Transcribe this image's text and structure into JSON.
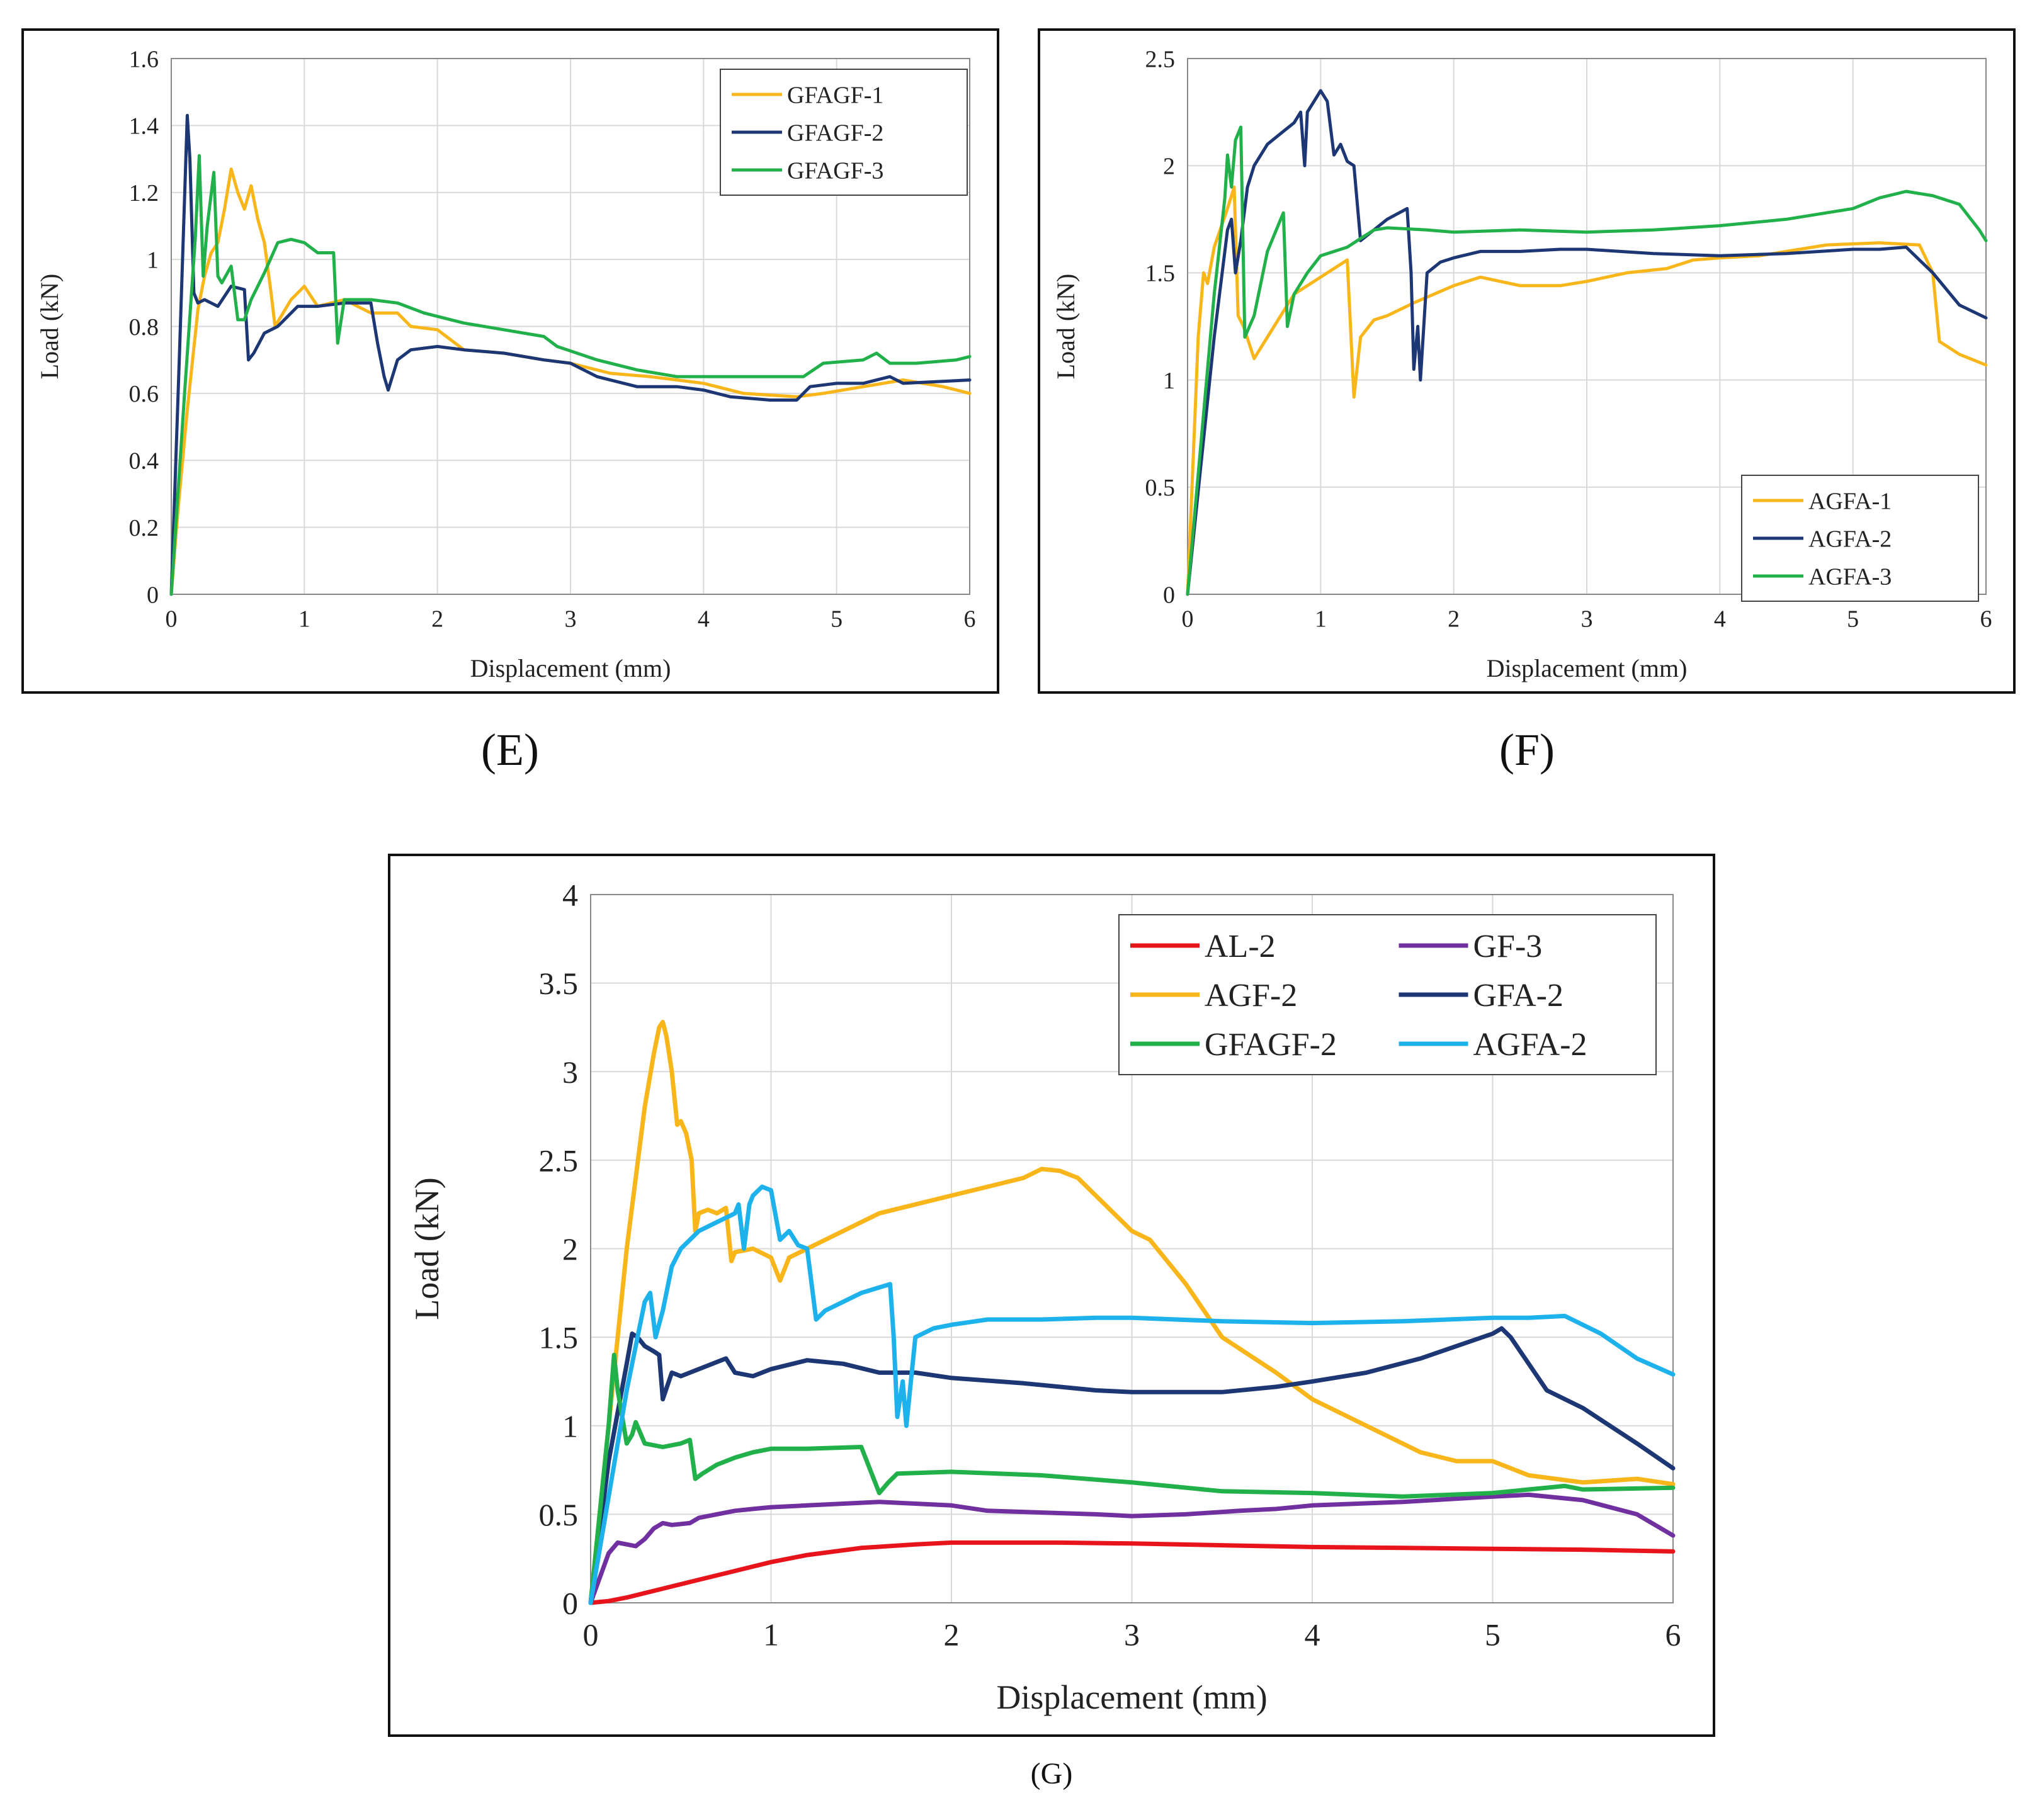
{
  "panel_captions": [
    "(E)",
    "(F)",
    "(G)"
  ],
  "chart_data": [
    {
      "id": "E",
      "type": "line",
      "xlabel": "Displacement (mm)",
      "ylabel": "Load (kN)",
      "xlim": [
        0,
        6
      ],
      "ylim": [
        0,
        1.6
      ],
      "xticks": [
        "0",
        "1",
        "2",
        "3",
        "4",
        "5",
        "6"
      ],
      "yticks": [
        "0",
        "0.2",
        "0.4",
        "0.6",
        "0.8",
        "1",
        "1.2",
        "1.4",
        "1.6"
      ],
      "grid": true,
      "legend_position": "top-right",
      "series": [
        {
          "name": "GFAGF-1",
          "color": "#f8b61b",
          "x": [
            0,
            0.05,
            0.12,
            0.2,
            0.25,
            0.3,
            0.35,
            0.4,
            0.45,
            0.5,
            0.55,
            0.6,
            0.65,
            0.7,
            0.75,
            0.78,
            0.9,
            1.0,
            1.1,
            1.2,
            1.3,
            1.5,
            1.7,
            1.8,
            2.0,
            2.2,
            2.5,
            2.8,
            3.0,
            3.3,
            3.6,
            4.0,
            4.3,
            4.7,
            4.9,
            5.2,
            5.5,
            5.8,
            6.0
          ],
          "y": [
            0,
            0.25,
            0.55,
            0.85,
            0.95,
            1.02,
            1.05,
            1.15,
            1.27,
            1.2,
            1.15,
            1.22,
            1.12,
            1.05,
            0.9,
            0.8,
            0.88,
            0.92,
            0.86,
            0.87,
            0.88,
            0.84,
            0.84,
            0.8,
            0.79,
            0.73,
            0.72,
            0.7,
            0.69,
            0.66,
            0.65,
            0.63,
            0.6,
            0.59,
            0.6,
            0.62,
            0.64,
            0.62,
            0.6
          ]
        },
        {
          "name": "GFAGF-2",
          "color": "#1d3774",
          "x": [
            0,
            0.06,
            0.12,
            0.14,
            0.17,
            0.2,
            0.25,
            0.3,
            0.35,
            0.45,
            0.55,
            0.58,
            0.62,
            0.7,
            0.8,
            0.95,
            1.1,
            1.3,
            1.5,
            1.55,
            1.6,
            1.63,
            1.7,
            1.8,
            2.0,
            2.2,
            2.5,
            2.8,
            3.0,
            3.2,
            3.5,
            3.8,
            4.0,
            4.2,
            4.5,
            4.7,
            4.8,
            5.0,
            5.2,
            5.4,
            5.5,
            6.0
          ],
          "y": [
            0,
            0.7,
            1.43,
            1.3,
            0.9,
            0.87,
            0.88,
            0.87,
            0.86,
            0.92,
            0.91,
            0.7,
            0.72,
            0.78,
            0.8,
            0.86,
            0.86,
            0.87,
            0.87,
            0.75,
            0.65,
            0.61,
            0.7,
            0.73,
            0.74,
            0.73,
            0.72,
            0.7,
            0.69,
            0.65,
            0.62,
            0.62,
            0.61,
            0.59,
            0.58,
            0.58,
            0.62,
            0.63,
            0.63,
            0.65,
            0.63,
            0.64
          ]
        },
        {
          "name": "GFAGF-3",
          "color": "#22b04a",
          "x": [
            0,
            0.1,
            0.18,
            0.21,
            0.24,
            0.27,
            0.32,
            0.35,
            0.38,
            0.45,
            0.5,
            0.55,
            0.6,
            0.7,
            0.8,
            0.9,
            1.0,
            1.1,
            1.22,
            1.25,
            1.3,
            1.5,
            1.7,
            1.9,
            2.2,
            2.5,
            2.8,
            2.9,
            3.2,
            3.5,
            3.8,
            4.2,
            4.6,
            4.75,
            4.9,
            5.2,
            5.3,
            5.4,
            5.6,
            5.9,
            6.0
          ],
          "y": [
            0,
            0.6,
            1.06,
            1.31,
            0.95,
            1.1,
            1.26,
            0.95,
            0.93,
            0.98,
            0.82,
            0.82,
            0.88,
            0.96,
            1.05,
            1.06,
            1.05,
            1.02,
            1.02,
            0.75,
            0.88,
            0.88,
            0.87,
            0.84,
            0.81,
            0.79,
            0.77,
            0.74,
            0.7,
            0.67,
            0.65,
            0.65,
            0.65,
            0.65,
            0.69,
            0.7,
            0.72,
            0.69,
            0.69,
            0.7,
            0.71
          ]
        }
      ]
    },
    {
      "id": "F",
      "type": "line",
      "xlabel": "Displacement (mm)",
      "ylabel": "Load (kN)",
      "xlim": [
        0,
        6
      ],
      "ylim": [
        0,
        2.5
      ],
      "xticks": [
        "0",
        "1",
        "2",
        "3",
        "4",
        "5",
        "6"
      ],
      "yticks": [
        "0",
        "0.5",
        "1",
        "1.5",
        "2",
        "2.5"
      ],
      "grid": true,
      "legend_position": "bottom-right",
      "series": [
        {
          "name": "AGFA-1",
          "color": "#f8b61b",
          "x": [
            0,
            0.08,
            0.12,
            0.15,
            0.2,
            0.3,
            0.35,
            0.38,
            0.42,
            0.5,
            0.6,
            0.7,
            0.8,
            1.0,
            1.2,
            1.25,
            1.3,
            1.4,
            1.5,
            1.7,
            2.0,
            2.2,
            2.5,
            2.8,
            3.0,
            3.3,
            3.6,
            3.8,
            4.0,
            4.3,
            4.5,
            4.8,
            5.2,
            5.5,
            5.6,
            5.65,
            5.8,
            6.0
          ],
          "y": [
            0,
            1.2,
            1.5,
            1.45,
            1.62,
            1.8,
            1.9,
            1.3,
            1.25,
            1.1,
            1.2,
            1.3,
            1.4,
            1.48,
            1.56,
            0.92,
            1.2,
            1.28,
            1.3,
            1.36,
            1.44,
            1.48,
            1.44,
            1.44,
            1.46,
            1.5,
            1.52,
            1.56,
            1.57,
            1.58,
            1.6,
            1.63,
            1.64,
            1.63,
            1.5,
            1.18,
            1.12,
            1.07
          ]
        },
        {
          "name": "AGFA-2",
          "color": "#1d3774",
          "x": [
            0,
            0.1,
            0.2,
            0.3,
            0.33,
            0.36,
            0.4,
            0.45,
            0.5,
            0.6,
            0.7,
            0.8,
            0.85,
            0.88,
            0.9,
            0.95,
            1.0,
            1.05,
            1.1,
            1.15,
            1.2,
            1.25,
            1.3,
            1.5,
            1.65,
            1.68,
            1.7,
            1.73,
            1.75,
            1.8,
            1.9,
            2.0,
            2.2,
            2.5,
            2.8,
            3.0,
            3.5,
            4.0,
            4.5,
            5.0,
            5.2,
            5.4,
            5.6,
            5.8,
            6.0
          ],
          "y": [
            0,
            0.6,
            1.2,
            1.7,
            1.75,
            1.5,
            1.65,
            1.9,
            2.0,
            2.1,
            2.15,
            2.2,
            2.25,
            2.0,
            2.25,
            2.3,
            2.35,
            2.3,
            2.05,
            2.1,
            2.02,
            2.0,
            1.65,
            1.75,
            1.8,
            1.5,
            1.05,
            1.25,
            1.0,
            1.5,
            1.55,
            1.57,
            1.6,
            1.6,
            1.61,
            1.61,
            1.59,
            1.58,
            1.59,
            1.61,
            1.61,
            1.62,
            1.5,
            1.35,
            1.29
          ]
        },
        {
          "name": "AGFA-3",
          "color": "#22b04a",
          "x": [
            0,
            0.1,
            0.2,
            0.28,
            0.3,
            0.33,
            0.36,
            0.4,
            0.43,
            0.5,
            0.6,
            0.7,
            0.72,
            0.75,
            0.8,
            0.9,
            1.0,
            1.2,
            1.3,
            1.4,
            1.5,
            1.8,
            2.0,
            2.5,
            3.0,
            3.5,
            4.0,
            4.5,
            5.0,
            5.2,
            5.4,
            5.6,
            5.8,
            5.95,
            6.0
          ],
          "y": [
            0,
            0.7,
            1.4,
            1.85,
            2.05,
            1.9,
            2.12,
            2.18,
            1.2,
            1.3,
            1.6,
            1.75,
            1.78,
            1.25,
            1.4,
            1.5,
            1.58,
            1.62,
            1.66,
            1.7,
            1.71,
            1.7,
            1.69,
            1.7,
            1.69,
            1.7,
            1.72,
            1.75,
            1.8,
            1.85,
            1.88,
            1.86,
            1.82,
            1.7,
            1.65
          ]
        }
      ]
    },
    {
      "id": "G",
      "type": "line",
      "xlabel": "Displacement (mm)",
      "ylabel": "Load (kN)",
      "xlim": [
        0,
        6
      ],
      "ylim": [
        0,
        4
      ],
      "xticks": [
        "0",
        "1",
        "2",
        "3",
        "4",
        "5",
        "6"
      ],
      "yticks": [
        "0",
        "0.5",
        "1",
        "1.5",
        "2",
        "2.5",
        "3",
        "3.5",
        "4"
      ],
      "grid": true,
      "legend_position": "top-right",
      "legend_columns": 2,
      "series": [
        {
          "name": "AL-2",
          "color": "#e8141c",
          "x": [
            0,
            0.1,
            0.2,
            0.4,
            0.6,
            0.8,
            1.0,
            1.2,
            1.5,
            1.8,
            2.0,
            2.3,
            2.6,
            3.0,
            3.5,
            4.0,
            4.5,
            5.0,
            5.5,
            6.0
          ],
          "y": [
            0,
            0.01,
            0.03,
            0.08,
            0.13,
            0.18,
            0.23,
            0.27,
            0.31,
            0.33,
            0.34,
            0.34,
            0.34,
            0.335,
            0.325,
            0.315,
            0.31,
            0.305,
            0.3,
            0.29
          ]
        },
        {
          "name": "GF-3",
          "color": "#7030a0",
          "x": [
            0,
            0.1,
            0.15,
            0.2,
            0.25,
            0.3,
            0.35,
            0.4,
            0.45,
            0.55,
            0.6,
            0.7,
            0.8,
            0.9,
            1.0,
            1.2,
            1.4,
            1.6,
            1.8,
            2.0,
            2.2,
            2.5,
            2.8,
            3.0,
            3.3,
            3.6,
            3.8,
            4.0,
            4.5,
            5.0,
            5.2,
            5.5,
            5.8,
            6.0
          ],
          "y": [
            0,
            0.28,
            0.34,
            0.33,
            0.32,
            0.36,
            0.42,
            0.45,
            0.44,
            0.45,
            0.48,
            0.5,
            0.52,
            0.53,
            0.54,
            0.55,
            0.56,
            0.57,
            0.56,
            0.55,
            0.52,
            0.51,
            0.5,
            0.49,
            0.5,
            0.52,
            0.53,
            0.55,
            0.57,
            0.6,
            0.61,
            0.58,
            0.5,
            0.38
          ]
        },
        {
          "name": "AGF-2",
          "color": "#f8b61b",
          "x": [
            0,
            0.1,
            0.2,
            0.3,
            0.35,
            0.38,
            0.4,
            0.42,
            0.45,
            0.48,
            0.5,
            0.53,
            0.56,
            0.58,
            0.6,
            0.65,
            0.7,
            0.75,
            0.78,
            0.8,
            0.9,
            1.0,
            1.05,
            1.1,
            1.2,
            1.4,
            1.6,
            1.8,
            2.0,
            2.2,
            2.4,
            2.5,
            2.6,
            2.7,
            2.8,
            3.0,
            3.1,
            3.3,
            3.5,
            3.8,
            4.0,
            4.3,
            4.6,
            4.8,
            5.0,
            5.2,
            5.5,
            5.8,
            6.0
          ],
          "y": [
            0,
            1.0,
            2.0,
            2.8,
            3.1,
            3.25,
            3.28,
            3.2,
            3.0,
            2.7,
            2.72,
            2.65,
            2.5,
            2.1,
            2.2,
            2.22,
            2.2,
            2.23,
            1.93,
            1.98,
            2.0,
            1.95,
            1.82,
            1.95,
            2.0,
            2.1,
            2.2,
            2.25,
            2.3,
            2.35,
            2.4,
            2.45,
            2.44,
            2.4,
            2.3,
            2.1,
            2.05,
            1.8,
            1.5,
            1.3,
            1.15,
            1.0,
            0.85,
            0.8,
            0.8,
            0.72,
            0.68,
            0.7,
            0.67
          ]
        },
        {
          "name": "GFA-2",
          "color": "#1d3774",
          "x": [
            0,
            0.1,
            0.2,
            0.23,
            0.26,
            0.3,
            0.35,
            0.38,
            0.4,
            0.45,
            0.5,
            0.6,
            0.7,
            0.75,
            0.8,
            0.9,
            1.0,
            1.2,
            1.4,
            1.6,
            1.8,
            2.0,
            2.4,
            2.8,
            3.0,
            3.5,
            3.8,
            4.0,
            4.3,
            4.6,
            4.8,
            5.0,
            5.05,
            5.1,
            5.2,
            5.3,
            5.5,
            5.8,
            6.0
          ],
          "y": [
            0,
            0.8,
            1.35,
            1.52,
            1.5,
            1.45,
            1.42,
            1.4,
            1.15,
            1.3,
            1.28,
            1.32,
            1.36,
            1.38,
            1.3,
            1.28,
            1.32,
            1.37,
            1.35,
            1.3,
            1.3,
            1.27,
            1.24,
            1.2,
            1.19,
            1.19,
            1.22,
            1.25,
            1.3,
            1.38,
            1.45,
            1.52,
            1.55,
            1.5,
            1.35,
            1.2,
            1.1,
            0.9,
            0.76
          ]
        },
        {
          "name": "GFAGF-2",
          "color": "#22b04a",
          "x": [
            0,
            0.1,
            0.13,
            0.15,
            0.2,
            0.23,
            0.25,
            0.3,
            0.4,
            0.5,
            0.55,
            0.58,
            0.62,
            0.7,
            0.8,
            0.9,
            1.0,
            1.2,
            1.5,
            1.55,
            1.6,
            1.65,
            1.7,
            2.0,
            2.5,
            3.0,
            3.5,
            4.0,
            4.5,
            5.0,
            5.4,
            5.5,
            6.0
          ],
          "y": [
            0,
            1.0,
            1.4,
            1.2,
            0.9,
            0.95,
            1.02,
            0.9,
            0.88,
            0.9,
            0.92,
            0.7,
            0.73,
            0.78,
            0.82,
            0.85,
            0.87,
            0.87,
            0.88,
            0.75,
            0.62,
            0.68,
            0.73,
            0.74,
            0.72,
            0.68,
            0.63,
            0.62,
            0.6,
            0.62,
            0.66,
            0.64,
            0.65
          ]
        },
        {
          "name": "AGFA-2",
          "color": "#1eb2ec",
          "x": [
            0,
            0.1,
            0.2,
            0.3,
            0.33,
            0.36,
            0.4,
            0.45,
            0.5,
            0.6,
            0.7,
            0.8,
            0.82,
            0.85,
            0.88,
            0.9,
            0.95,
            1.0,
            1.05,
            1.1,
            1.15,
            1.2,
            1.25,
            1.3,
            1.5,
            1.66,
            1.68,
            1.7,
            1.73,
            1.75,
            1.8,
            1.9,
            2.0,
            2.2,
            2.5,
            2.8,
            3.0,
            3.5,
            4.0,
            4.5,
            5.0,
            5.2,
            5.4,
            5.6,
            5.8,
            6.0
          ],
          "y": [
            0,
            0.6,
            1.2,
            1.7,
            1.75,
            1.5,
            1.65,
            1.9,
            2.0,
            2.1,
            2.15,
            2.2,
            2.25,
            2.0,
            2.25,
            2.3,
            2.35,
            2.33,
            2.05,
            2.1,
            2.02,
            2.0,
            1.6,
            1.65,
            1.75,
            1.8,
            1.5,
            1.05,
            1.25,
            1.0,
            1.5,
            1.55,
            1.57,
            1.6,
            1.6,
            1.61,
            1.61,
            1.59,
            1.58,
            1.59,
            1.61,
            1.61,
            1.62,
            1.52,
            1.38,
            1.29
          ]
        }
      ]
    }
  ]
}
